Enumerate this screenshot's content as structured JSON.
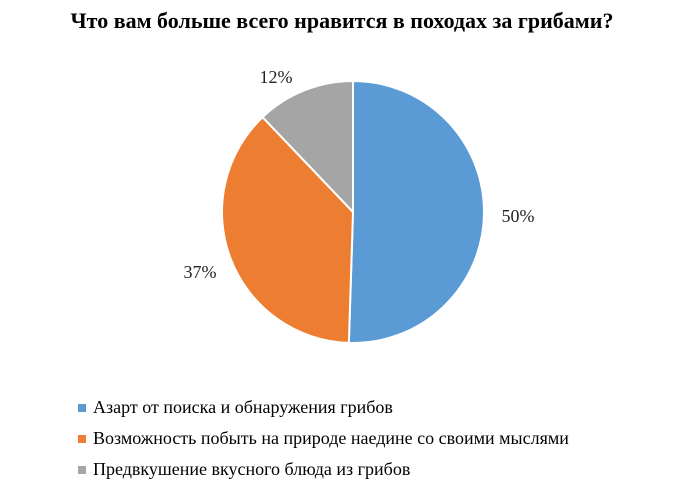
{
  "chart_data": {
    "type": "pie",
    "title": "Что вам больше всего нравится в походах за грибами?",
    "categories": [
      "Азарт от поиска и обнаружения грибов",
      "Возможность побыть на природе наедине со своими мыслями",
      "Предвкушение вкусного блюда из грибов"
    ],
    "values": [
      50,
      37,
      12
    ],
    "labels": [
      "50%",
      "37%",
      "12%"
    ],
    "colors": [
      "#5b9bd5",
      "#ed7d31",
      "#a5a5a5"
    ],
    "legend_position": "bottom-left"
  }
}
